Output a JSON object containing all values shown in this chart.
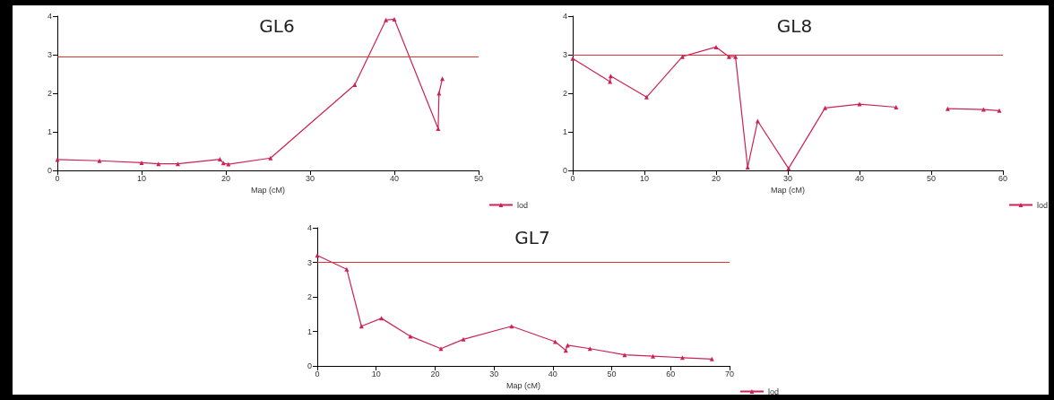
{
  "chart_data": [
    {
      "type": "line",
      "title": "GL6",
      "xlabel": "Map (cM)",
      "xlim": [
        0,
        50
      ],
      "xticks": [
        0,
        10,
        20,
        30,
        40,
        50
      ],
      "ylim": [
        0,
        4
      ],
      "yticks": [
        0,
        1,
        2,
        3,
        4
      ],
      "marker": "triangle",
      "legend": "bottom right",
      "grid": false,
      "x": [
        0,
        5,
        10,
        12,
        14.3,
        19.3,
        19.7,
        20.3,
        25.3,
        35.3,
        39,
        40,
        45.2,
        45.3,
        45.7
      ],
      "series": [
        {
          "name": "lod",
          "color": "#cc2255",
          "values": [
            0.28,
            0.25,
            0.2,
            0.17,
            0.17,
            0.29,
            0.19,
            0.16,
            0.32,
            2.22,
            3.9,
            3.92,
            1.08,
            2.0,
            2.38
          ]
        }
      ],
      "ref_lines": [
        {
          "axis": "y",
          "value": 2.95,
          "color": "#dd3333"
        }
      ]
    },
    {
      "type": "line",
      "title": "GL8",
      "xlabel": "Map (cM)",
      "xlim": [
        0,
        60
      ],
      "xticks": [
        0,
        10,
        20,
        30,
        40,
        50,
        60
      ],
      "ylim": [
        0,
        4
      ],
      "yticks": [
        0,
        1,
        2,
        3,
        4
      ],
      "marker": "triangle",
      "legend": "bottom right",
      "grid": false,
      "x": [
        0,
        5.2,
        5.3,
        10.3,
        15.3,
        20,
        21.8,
        22.7,
        24.4,
        25.8,
        30.1,
        35.2,
        40,
        45.1,
        48,
        52.3,
        57.3,
        59.5
      ],
      "series": [
        {
          "name": "lod",
          "color": "#cc2255",
          "values": [
            2.9,
            2.3,
            2.45,
            1.9,
            2.95,
            3.2,
            2.95,
            2.95,
            0.08,
            1.28,
            0.05,
            1.62,
            1.72,
            1.64,
            null,
            1.6,
            1.58,
            1.55
          ]
        }
      ],
      "ref_lines": [
        {
          "axis": "y",
          "value": 3,
          "color": "#dd3333"
        }
      ]
    },
    {
      "type": "line",
      "title": "GL7",
      "xlabel": "Map (cM)",
      "xlim": [
        0,
        70
      ],
      "xticks": [
        0,
        10,
        20,
        30,
        40,
        50,
        60,
        70
      ],
      "ylim": [
        0,
        4
      ],
      "yticks": [
        0,
        1,
        2,
        3,
        4
      ],
      "marker": "triangle",
      "legend": "bottom right",
      "grid": false,
      "x": [
        0,
        5,
        7.5,
        10.9,
        15.8,
        21,
        24.8,
        33,
        40.4,
        42.2,
        42.5,
        46.3,
        52.2,
        57,
        62,
        67
      ],
      "series": [
        {
          "name": "lod",
          "color": "#cc2255",
          "values": [
            3.2,
            2.8,
            1.15,
            1.38,
            0.86,
            0.5,
            0.77,
            1.15,
            0.7,
            0.45,
            0.6,
            0.5,
            0.32,
            0.28,
            0.24,
            0.2
          ]
        }
      ],
      "ref_lines": [
        {
          "axis": "y",
          "value": 3,
          "color": "#dd3333"
        }
      ]
    }
  ]
}
